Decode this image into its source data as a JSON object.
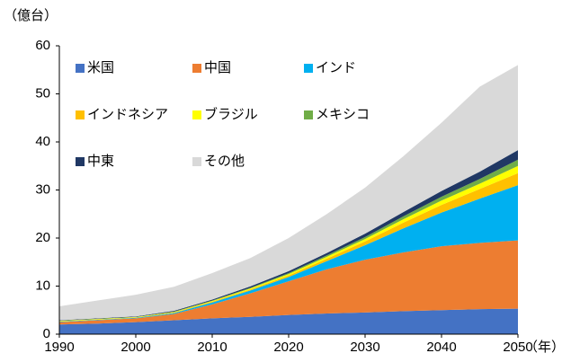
{
  "chart_data": {
    "type": "stacked_area",
    "y_unit": "（億台）",
    "x_unit": "（年）",
    "x": [
      1990,
      1995,
      2000,
      2005,
      2010,
      2015,
      2020,
      2025,
      2030,
      2035,
      2040,
      2045,
      2050
    ],
    "series": [
      {
        "name": "米国",
        "color": "#4472c4",
        "values": [
          2.0,
          2.2,
          2.5,
          2.9,
          3.3,
          3.6,
          4.0,
          4.3,
          4.5,
          4.8,
          5.0,
          5.2,
          5.3
        ]
      },
      {
        "name": "中国",
        "color": "#ed7d31",
        "values": [
          0.5,
          0.7,
          0.8,
          1.3,
          2.9,
          4.9,
          7.0,
          9.2,
          11.0,
          12.2,
          13.3,
          13.8,
          14.2
        ]
      },
      {
        "name": "インド",
        "color": "#00b0f0",
        "values": [
          0.1,
          0.1,
          0.1,
          0.2,
          0.4,
          0.6,
          0.9,
          1.7,
          3.0,
          5.0,
          7.0,
          9.2,
          11.5
        ]
      },
      {
        "name": "インドネシア",
        "color": "#ffc000",
        "values": [
          0.05,
          0.05,
          0.05,
          0.1,
          0.15,
          0.2,
          0.3,
          0.5,
          0.8,
          1.2,
          1.6,
          2.0,
          2.5
        ]
      },
      {
        "name": "ブラジル",
        "color": "#ffff00",
        "values": [
          0.1,
          0.1,
          0.1,
          0.1,
          0.15,
          0.2,
          0.3,
          0.4,
          0.5,
          0.7,
          0.9,
          1.1,
          1.5
        ]
      },
      {
        "name": "メキシコ",
        "color": "#70ad47",
        "values": [
          0.05,
          0.05,
          0.05,
          0.1,
          0.1,
          0.15,
          0.2,
          0.3,
          0.4,
          0.6,
          0.8,
          1.0,
          1.3
        ]
      },
      {
        "name": "中東",
        "color": "#203864",
        "values": [
          0.1,
          0.1,
          0.1,
          0.15,
          0.2,
          0.3,
          0.4,
          0.5,
          0.7,
          0.9,
          1.2,
          1.5,
          2.0
        ]
      },
      {
        "name": "その他",
        "color": "#d9d9d9",
        "values": [
          2.9,
          3.7,
          4.5,
          5.0,
          5.5,
          5.9,
          6.9,
          8.1,
          9.6,
          11.6,
          14.2,
          17.7,
          17.7
        ]
      }
    ],
    "xlim": [
      1990,
      2050
    ],
    "xticks": [
      1990,
      2000,
      2010,
      2020,
      2030,
      2040,
      2050
    ],
    "ylim": [
      0,
      60
    ],
    "yticks": [
      0,
      10,
      20,
      30,
      40,
      50,
      60
    ],
    "grid": false,
    "legend": "upper left"
  }
}
